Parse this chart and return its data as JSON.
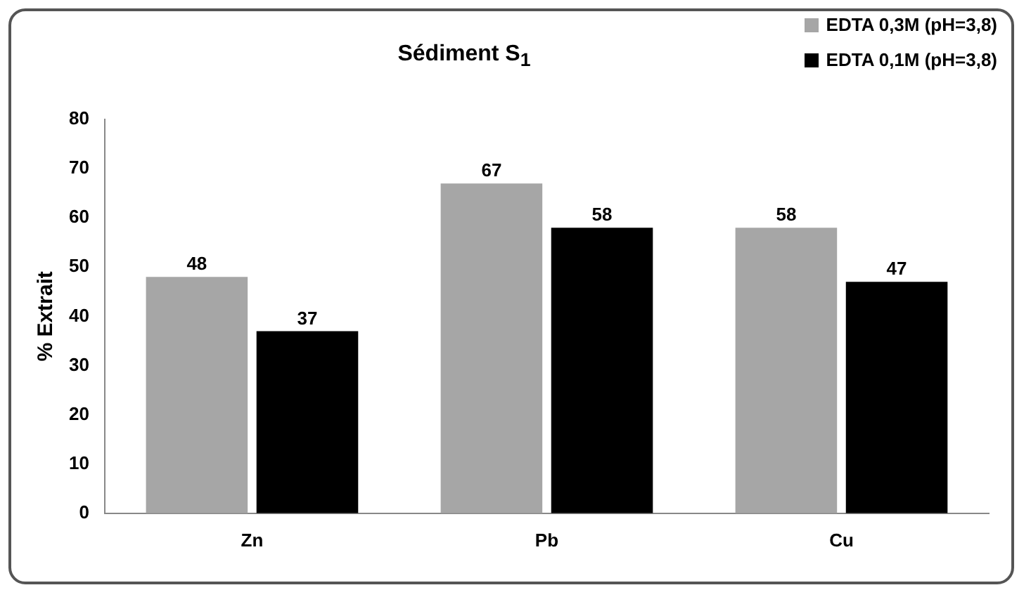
{
  "chart_data": {
    "type": "bar",
    "title": "Sédiment S$_{1}$",
    "ylabel": "% Extrait",
    "categories": [
      "Zn",
      "Pb",
      "Cu"
    ],
    "series": [
      {
        "name": "EDTA 0,3M (pH=3,8)",
        "color": "#a6a6a6",
        "values": [
          48,
          67,
          58
        ]
      },
      {
        "name": "EDTA 0,1M (pH=3,8)",
        "color": "#000000",
        "values": [
          37,
          58,
          47
        ]
      }
    ],
    "ylim": [
      0,
      80
    ],
    "yticks": [
      0,
      10,
      20,
      30,
      40,
      50,
      60,
      70,
      80
    ],
    "grid": false,
    "legend": "top right",
    "data_labels": true
  }
}
